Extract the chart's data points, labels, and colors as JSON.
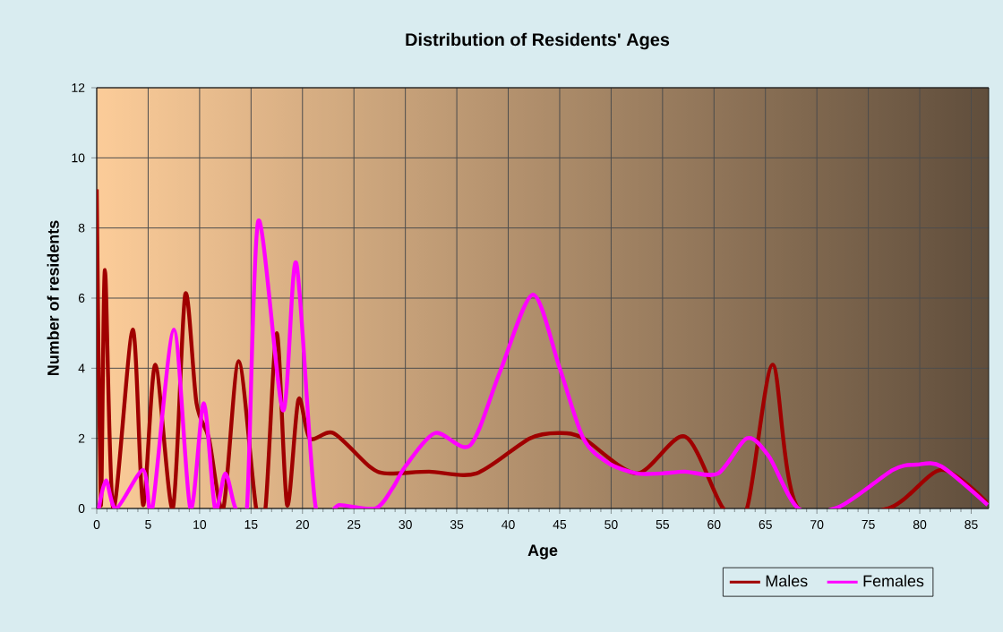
{
  "chart_data": {
    "type": "line",
    "title": "Distribution of Residents' Ages",
    "xlabel": "Age",
    "ylabel": "Number of residents",
    "xlim": [
      0,
      86.7
    ],
    "xticks": [
      0,
      5,
      10,
      15,
      20,
      25,
      30,
      35,
      40,
      45,
      50,
      55,
      60,
      65,
      70,
      75,
      80,
      85
    ],
    "ylim": [
      0,
      12
    ],
    "yticks": [
      0,
      2,
      4,
      6,
      8,
      10,
      12
    ],
    "grid": true,
    "legend": "bottom right",
    "series": [
      {
        "name": "Males",
        "color": "#a00000",
        "x": [
          0,
          0.4,
          0.8,
          1.6,
          3.5,
          4.5,
          5.7,
          7.4,
          8.6,
          9.7,
          10.9,
          12.3,
          13.8,
          15.5,
          16.4,
          17.5,
          18.5,
          19.6,
          20.7,
          23,
          26.5,
          28.2,
          32.3,
          36.9,
          42.1,
          45,
          47.3,
          52.5,
          57.2,
          60.9,
          63.2,
          65.7,
          68.2,
          76.9,
          82.1,
          86.6
        ],
        "values": [
          9.1,
          0.1,
          6.8,
          0,
          5.1,
          0.1,
          4.1,
          0,
          6.1,
          3.0,
          2.0,
          0,
          4.2,
          0,
          0,
          5.0,
          0.1,
          3.1,
          2.0,
          2.15,
          1.2,
          1.0,
          1.05,
          1.0,
          2.0,
          2.15,
          2.0,
          1.0,
          2.05,
          0,
          0,
          4.1,
          0,
          0,
          1.1,
          0.15
        ]
      },
      {
        "name": "Females",
        "color": "#ff00ff",
        "x": [
          0.2,
          0.9,
          1.9,
          4.5,
          5.4,
          7.5,
          9.1,
          10.4,
          11.5,
          12.5,
          13.5,
          14.6,
          15.7,
          18.1,
          19.4,
          21.3,
          23.6,
          27.1,
          28.8,
          30,
          32.9,
          36.3,
          39.2,
          42.4,
          45,
          47.3,
          49.7,
          52.5,
          54.9,
          57.2,
          60.4,
          63.2,
          65.3,
          68.2,
          72.2,
          77.4,
          79.7,
          82.1,
          86.6
        ],
        "values": [
          0,
          0.8,
          0,
          1.1,
          0,
          5.1,
          0,
          3.0,
          0,
          1.0,
          0,
          0,
          8.2,
          2.8,
          7.0,
          0,
          0.1,
          0,
          0.6,
          1.2,
          2.15,
          1.8,
          3.9,
          6.1,
          4.0,
          2.0,
          1.3,
          1.0,
          1.0,
          1.05,
          1.0,
          2.0,
          1.5,
          0,
          0.05,
          1.1,
          1.25,
          1.2,
          0.1
        ]
      }
    ]
  }
}
